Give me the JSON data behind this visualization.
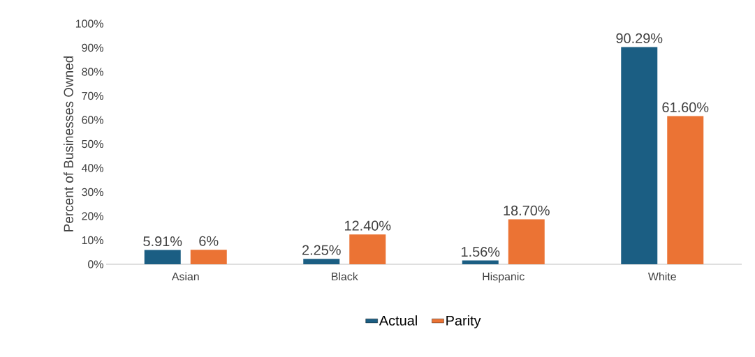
{
  "chart_data": {
    "type": "bar",
    "ylabel": "Percent of Businesses Owned",
    "categories": [
      "Asian",
      "Black",
      "Hispanic",
      "White"
    ],
    "series": [
      {
        "name": "Actual",
        "color": "#1b5e83",
        "values": [
          5.91,
          2.25,
          1.56,
          90.29
        ],
        "value_labels": [
          "5.91%",
          "2.25%",
          "1.56%",
          "90.29%"
        ]
      },
      {
        "name": "Parity",
        "color": "#eb7334",
        "values": [
          6,
          12.4,
          18.7,
          61.6
        ],
        "value_labels": [
          "6%",
          "12.40%",
          "18.70%",
          "61.60%"
        ]
      }
    ],
    "ylim": [
      0,
      100
    ],
    "yticks": [
      {
        "value": 0,
        "label": "0%"
      },
      {
        "value": 10,
        "label": "10%"
      },
      {
        "value": 20,
        "label": "20%"
      },
      {
        "value": 30,
        "label": "30%"
      },
      {
        "value": 40,
        "label": "40%"
      },
      {
        "value": 50,
        "label": "50%"
      },
      {
        "value": 60,
        "label": "60%"
      },
      {
        "value": 70,
        "label": "70%"
      },
      {
        "value": 80,
        "label": "80%"
      },
      {
        "value": 90,
        "label": "90%"
      },
      {
        "value": 100,
        "label": "100%"
      }
    ],
    "grid": false,
    "legend": "bottom"
  }
}
